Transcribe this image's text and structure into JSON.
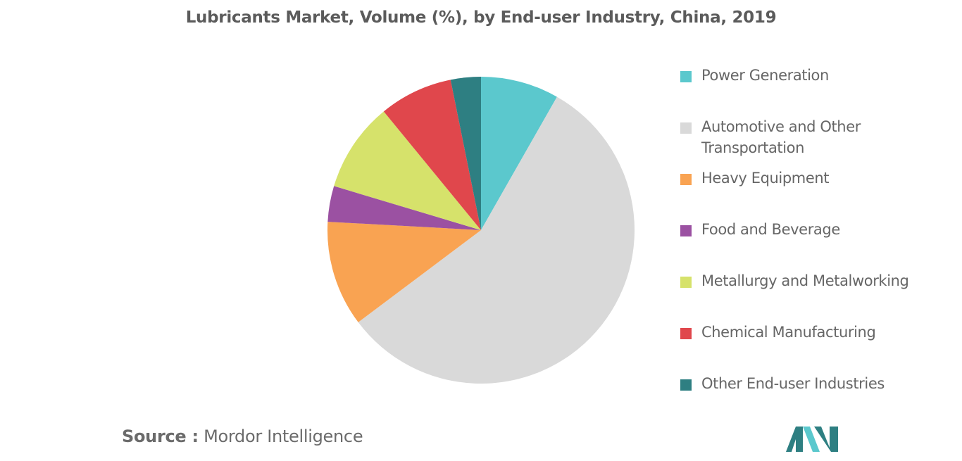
{
  "chart_data": {
    "type": "pie",
    "title": "Lubricants Market, Volume (%), by End-user Industry, China, 2019",
    "legend_position": "right",
    "slices": [
      {
        "name": "Power Generation",
        "value": 8.3,
        "color": "#5bc8cd"
      },
      {
        "name": "Automotive and Other Transportation",
        "value": 56.9,
        "color": "#d9d9d9"
      },
      {
        "name": "Heavy Equipment",
        "value": 11.2,
        "color": "#f9a352"
      },
      {
        "name": "Food and Beverage",
        "value": 3.8,
        "color": "#9b51a2"
      },
      {
        "name": "Metallurgy and Metalworking",
        "value": 9.5,
        "color": "#d6e26b"
      },
      {
        "name": "Chemical Manufacturing",
        "value": 7.8,
        "color": "#e0474c"
      },
      {
        "name": "Other End-user Industries",
        "value": 3.2,
        "color": "#2e7f82"
      }
    ]
  },
  "source": {
    "label": "Source :",
    "text": " Mordor Intelligence"
  },
  "logo": {
    "icon": "mordor-intelligence-logo",
    "colors": [
      "#2e7f82",
      "#5bc8cd"
    ]
  }
}
